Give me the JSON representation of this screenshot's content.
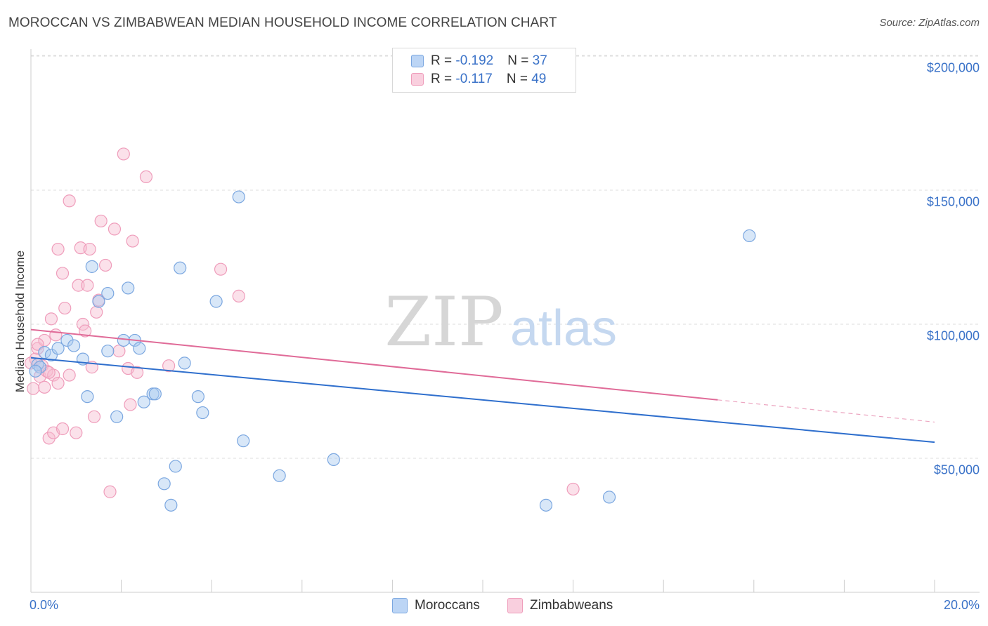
{
  "title": "MOROCCAN VS ZIMBABWEAN MEDIAN HOUSEHOLD INCOME CORRELATION CHART",
  "source": "Source: ZipAtlas.com",
  "watermark": {
    "zip": "ZIP",
    "atlas": "atlas"
  },
  "legend": {
    "rows": [
      {
        "r_label": "R = ",
        "r_value": "-0.192",
        "n_label": "N = ",
        "n_value": "37"
      },
      {
        "r_label": "R = ",
        "r_value": "-0.117",
        "n_label": "N = ",
        "n_value": "49"
      }
    ]
  },
  "colors": {
    "moroccans_fill": "#a9c9f0",
    "moroccans_stroke": "#7ba7e0",
    "moroccans_line": "#2f6fcd",
    "zimbabweans_fill": "#f6bdd0",
    "zimbabweans_stroke": "#ef9dbb",
    "zimbabweans_line": "#e06b98",
    "axis_text": "#3a72c8"
  },
  "chart_data": {
    "type": "scatter",
    "xlabel": "",
    "ylabel": "Median Household Income",
    "x_tick_labels": [
      "0.0%",
      "20.0%"
    ],
    "xlim": [
      0,
      20
    ],
    "ylim": [
      0,
      215000
    ],
    "y_ticks": [
      {
        "value": 50000,
        "label": "$50,000"
      },
      {
        "value": 100000,
        "label": "$100,000"
      },
      {
        "value": 150000,
        "label": "$150,000"
      },
      {
        "value": 200000,
        "label": "$200,000"
      }
    ],
    "grid": true,
    "legend_position": "top-center",
    "series": [
      {
        "name": "Moroccans",
        "trend": {
          "x0": 0.0,
          "y0": 87500,
          "x1": 20.0,
          "y1": 56000,
          "dashed_from": null
        },
        "points": [
          [
            0.15,
            85000
          ],
          [
            0.2,
            84000
          ],
          [
            0.3,
            89500
          ],
          [
            0.45,
            88500
          ],
          [
            0.6,
            91000
          ],
          [
            0.8,
            94000
          ],
          [
            0.95,
            92000
          ],
          [
            1.15,
            87000
          ],
          [
            1.25,
            73000
          ],
          [
            1.35,
            121500
          ],
          [
            1.5,
            108500
          ],
          [
            1.7,
            90000
          ],
          [
            1.7,
            111500
          ],
          [
            1.9,
            65500
          ],
          [
            2.05,
            94000
          ],
          [
            2.15,
            113500
          ],
          [
            2.3,
            94000
          ],
          [
            2.4,
            91000
          ],
          [
            2.5,
            71000
          ],
          [
            2.7,
            74000
          ],
          [
            2.75,
            74000
          ],
          [
            2.95,
            40500
          ],
          [
            3.1,
            32500
          ],
          [
            3.2,
            47000
          ],
          [
            3.3,
            121000
          ],
          [
            3.4,
            85500
          ],
          [
            3.7,
            73000
          ],
          [
            3.8,
            67000
          ],
          [
            4.1,
            108500
          ],
          [
            4.6,
            147500
          ],
          [
            4.7,
            56500
          ],
          [
            5.5,
            43500
          ],
          [
            6.7,
            49500
          ],
          [
            11.4,
            32500
          ],
          [
            12.8,
            35500
          ],
          [
            15.9,
            133000
          ],
          [
            0.1,
            82500
          ]
        ]
      },
      {
        "name": "Zimbabweans",
        "trend": {
          "x0": 0.0,
          "y0": 98000,
          "x1": 20.0,
          "y1": 63500,
          "dashed_from": 15.2
        },
        "points": [
          [
            0.05,
            76000
          ],
          [
            0.1,
            87000
          ],
          [
            0.15,
            91000
          ],
          [
            0.2,
            80500
          ],
          [
            0.25,
            84500
          ],
          [
            0.3,
            94000
          ],
          [
            0.35,
            82500
          ],
          [
            0.4,
            57500
          ],
          [
            0.45,
            102000
          ],
          [
            0.5,
            81000
          ],
          [
            0.5,
            59500
          ],
          [
            0.55,
            96000
          ],
          [
            0.6,
            128000
          ],
          [
            0.6,
            78000
          ],
          [
            0.7,
            61000
          ],
          [
            0.7,
            119000
          ],
          [
            0.75,
            106000
          ],
          [
            0.85,
            81000
          ],
          [
            0.85,
            146000
          ],
          [
            1.0,
            59500
          ],
          [
            1.05,
            114500
          ],
          [
            1.1,
            128500
          ],
          [
            1.15,
            100000
          ],
          [
            1.2,
            97500
          ],
          [
            1.25,
            114500
          ],
          [
            1.3,
            128000
          ],
          [
            1.35,
            84000
          ],
          [
            1.4,
            65500
          ],
          [
            1.45,
            104500
          ],
          [
            1.5,
            109000
          ],
          [
            1.55,
            138500
          ],
          [
            1.65,
            122000
          ],
          [
            1.75,
            37500
          ],
          [
            1.85,
            135500
          ],
          [
            1.95,
            90000
          ],
          [
            2.05,
            163500
          ],
          [
            2.15,
            83500
          ],
          [
            2.2,
            70000
          ],
          [
            2.25,
            131000
          ],
          [
            2.35,
            82000
          ],
          [
            2.55,
            155000
          ],
          [
            3.05,
            84500
          ],
          [
            4.2,
            120500
          ],
          [
            4.6,
            110500
          ],
          [
            12.0,
            38500
          ],
          [
            0.0,
            85500
          ],
          [
            0.15,
            92500
          ],
          [
            0.3,
            76500
          ],
          [
            0.4,
            82000
          ]
        ]
      }
    ]
  },
  "bottom_legend": {
    "moroccans": "Moroccans",
    "zimbabweans": "Zimbabweans"
  }
}
